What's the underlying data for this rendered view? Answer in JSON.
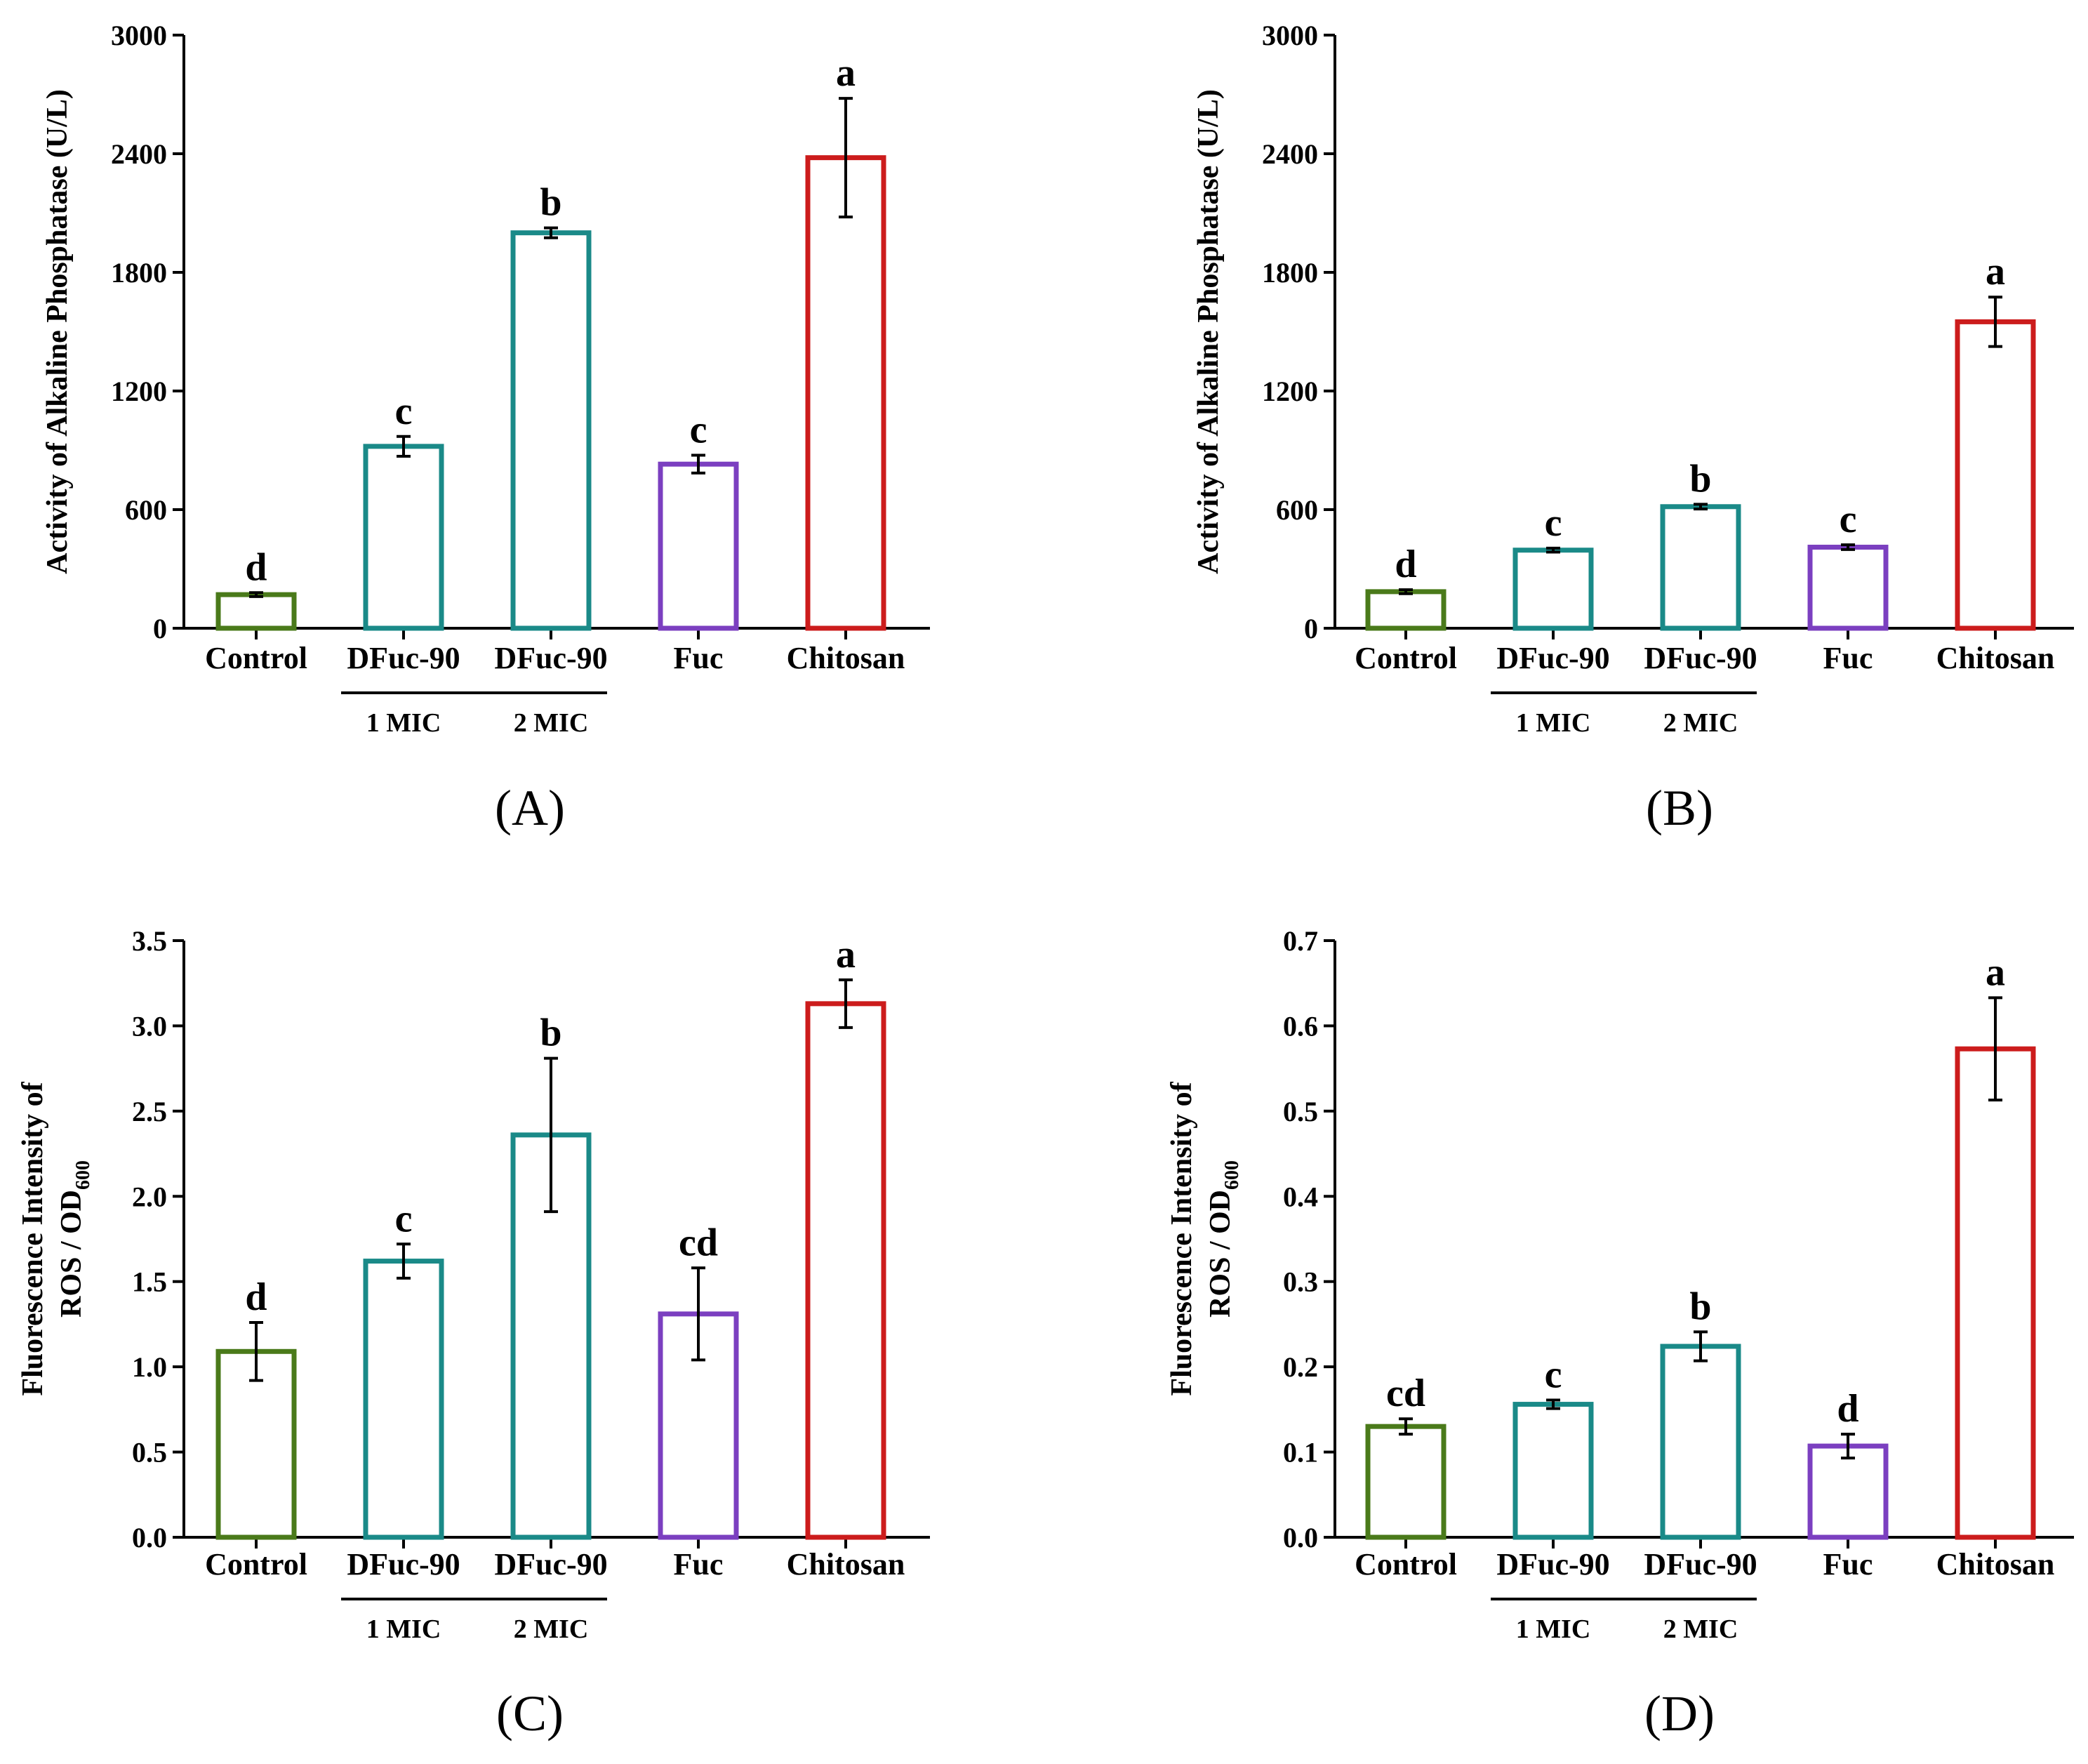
{
  "chart_data": [
    {
      "type": "bar",
      "panel_label": "(A)",
      "ylabel_lines": [
        "Activity of Alkaline Phosphatase (U/L)"
      ],
      "ylim": [
        0,
        3000
      ],
      "yticks": [
        "0",
        "600",
        "1200",
        "1800",
        "2400",
        "3000"
      ],
      "ytick_values": [
        0,
        600,
        1200,
        1800,
        2400,
        3000
      ],
      "categories": [
        "Control",
        "DFuc-90",
        "DFuc-90",
        "Fuc",
        "Chitosan"
      ],
      "group_labels": [
        "1 MIC",
        "2 MIC"
      ],
      "values": [
        170,
        920,
        2000,
        830,
        2380
      ],
      "errors": [
        10,
        50,
        25,
        45,
        300
      ],
      "significance": [
        "d",
        "c",
        "b",
        "c",
        "a"
      ],
      "colors": [
        "#4a7a1a",
        "#1a8a88",
        "#1a8a88",
        "#7b3fc0",
        "#cc1c1c"
      ]
    },
    {
      "type": "bar",
      "panel_label": "(B)",
      "ylabel_lines": [
        "Activity of Alkaline Phosphatase (U/L)"
      ],
      "ylim": [
        0,
        3000
      ],
      "yticks": [
        "0",
        "600",
        "1200",
        "1800",
        "2400",
        "3000"
      ],
      "ytick_values": [
        0,
        600,
        1200,
        1800,
        2400,
        3000
      ],
      "categories": [
        "Control",
        "DFuc-90",
        "DFuc-90",
        "Fuc",
        "Chitosan"
      ],
      "group_labels": [
        "1 MIC",
        "2 MIC"
      ],
      "values": [
        185,
        395,
        615,
        410,
        1550
      ],
      "errors": [
        10,
        10,
        12,
        12,
        125
      ],
      "significance": [
        "d",
        "c",
        "b",
        "c",
        "a"
      ],
      "colors": [
        "#4a7a1a",
        "#1a8a88",
        "#1a8a88",
        "#7b3fc0",
        "#cc1c1c"
      ]
    },
    {
      "type": "bar",
      "panel_label": "(C)",
      "ylabel_lines": [
        "Fluorescence Intensity of",
        "ROS / OD",
        "600"
      ],
      "ylim": [
        0,
        3.5
      ],
      "yticks": [
        "0.0",
        "0.5",
        "1.0",
        "1.5",
        "2.0",
        "2.5",
        "3.0",
        "3.5"
      ],
      "ytick_values": [
        0,
        0.5,
        1.0,
        1.5,
        2.0,
        2.5,
        3.0,
        3.5
      ],
      "categories": [
        "Control",
        "DFuc-90",
        "DFuc-90",
        "Fuc",
        "Chitosan"
      ],
      "group_labels": [
        "1 MIC",
        "2 MIC"
      ],
      "values": [
        1.09,
        1.62,
        2.36,
        1.31,
        3.13
      ],
      "errors": [
        0.17,
        0.1,
        0.45,
        0.27,
        0.14
      ],
      "significance": [
        "d",
        "c",
        "b",
        "cd",
        "a"
      ],
      "colors": [
        "#4a7a1a",
        "#1a8a88",
        "#1a8a88",
        "#7b3fc0",
        "#cc1c1c"
      ]
    },
    {
      "type": "bar",
      "panel_label": "(D)",
      "ylabel_lines": [
        "Fluorescence Intensity of",
        "ROS / OD",
        "600"
      ],
      "ylim": [
        0,
        0.7
      ],
      "yticks": [
        "0.0",
        "0.1",
        "0.2",
        "0.3",
        "0.4",
        "0.5",
        "0.6",
        "0.7"
      ],
      "ytick_values": [
        0,
        0.1,
        0.2,
        0.3,
        0.4,
        0.5,
        0.6,
        0.7
      ],
      "categories": [
        "Control",
        "DFuc-90",
        "DFuc-90",
        "Fuc",
        "Chitosan"
      ],
      "group_labels": [
        "1 MIC",
        "2 MIC"
      ],
      "values": [
        0.13,
        0.156,
        0.224,
        0.107,
        0.573
      ],
      "errors": [
        0.009,
        0.005,
        0.017,
        0.014,
        0.06
      ],
      "significance": [
        "cd",
        "c",
        "b",
        "d",
        "a"
      ],
      "colors": [
        "#4a7a1a",
        "#1a8a88",
        "#1a8a88",
        "#7b3fc0",
        "#cc1c1c"
      ]
    }
  ]
}
